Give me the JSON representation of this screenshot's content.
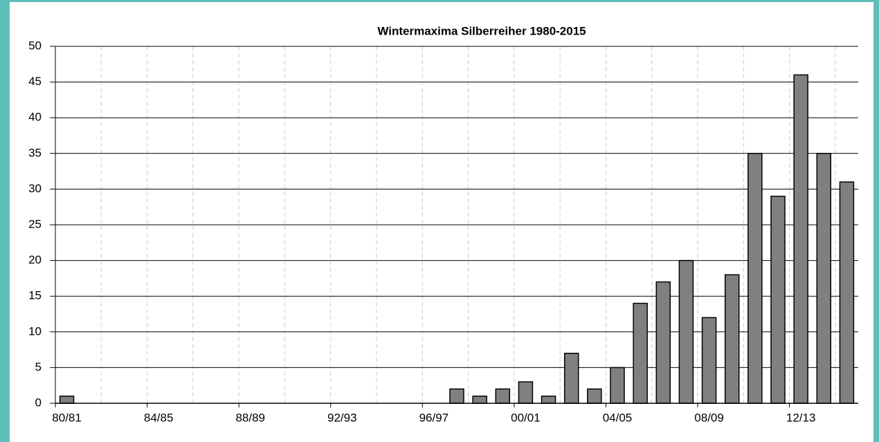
{
  "chart_data": {
    "type": "bar",
    "title": "Wintermaxima Silberreiher 1980-2015",
    "categories": [
      "80/81",
      null,
      null,
      null,
      "84/85",
      null,
      null,
      null,
      "88/89",
      null,
      null,
      null,
      "92/93",
      null,
      null,
      null,
      "96/97",
      null,
      null,
      null,
      "00/01",
      null,
      null,
      null,
      "04/05",
      null,
      null,
      null,
      "08/09",
      null,
      null,
      null,
      "12/13",
      null,
      null
    ],
    "values": [
      1,
      0,
      0,
      0,
      0,
      0,
      0,
      0,
      0,
      0,
      0,
      0,
      0,
      0,
      0,
      0,
      0,
      2,
      1,
      2,
      3,
      1,
      7,
      2,
      5,
      14,
      17,
      20,
      12,
      18,
      35,
      29,
      46,
      35,
      31
    ],
    "color": "#808080",
    "ylim": [
      0,
      50
    ],
    "yticks": [
      0,
      5,
      10,
      15,
      20,
      25,
      30,
      35,
      40,
      45,
      50
    ],
    "grid": true
  }
}
